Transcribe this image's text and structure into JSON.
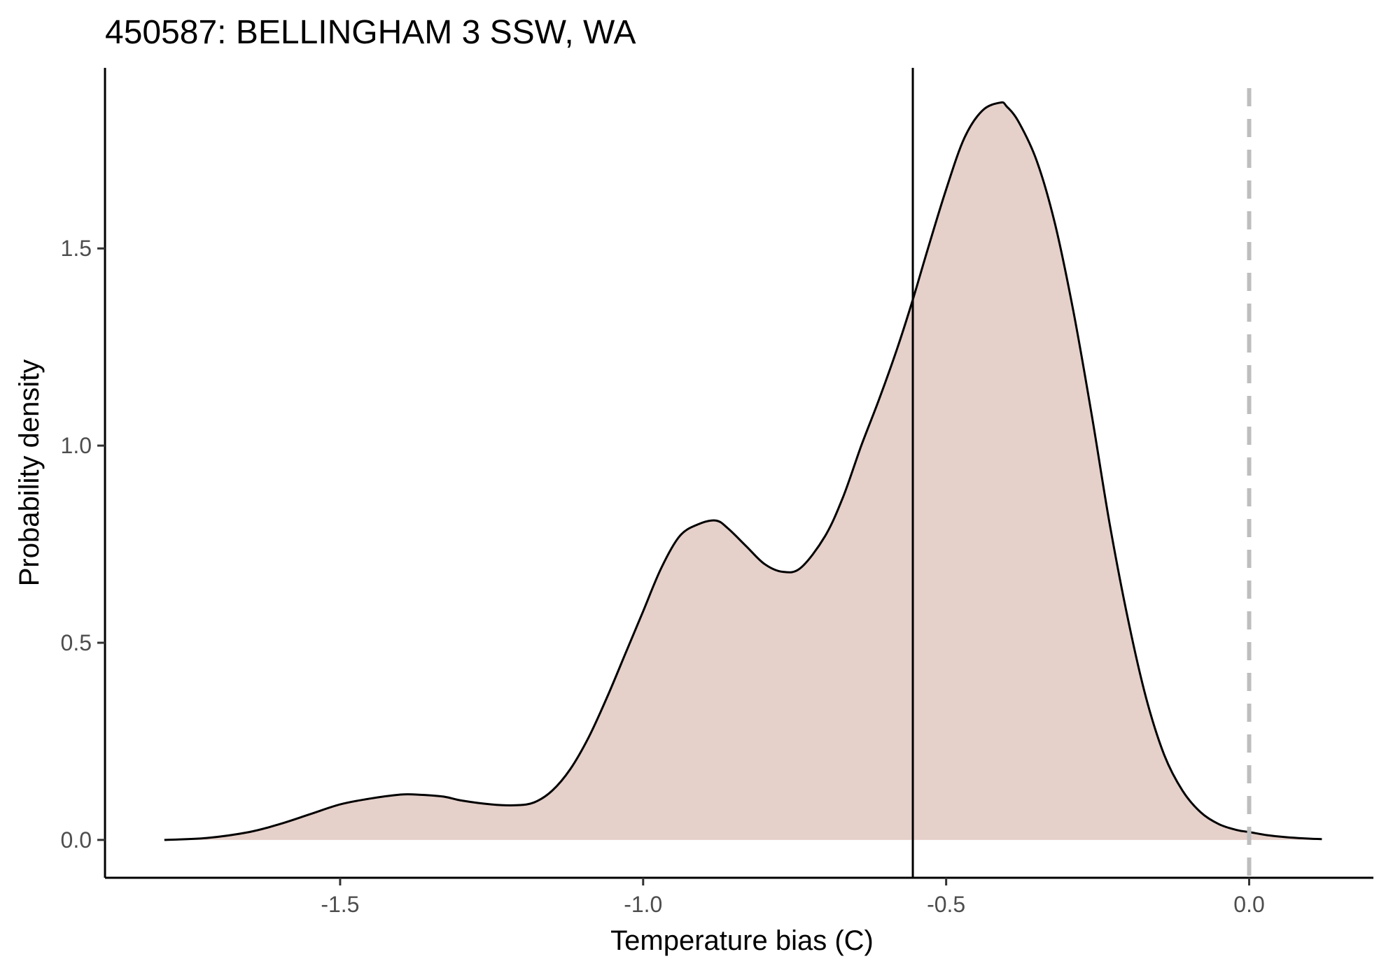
{
  "chart_data": {
    "type": "area",
    "title": "450587: BELLINGHAM 3 SSW, WA",
    "xlabel": "Temperature bias (C)",
    "ylabel": "Probability density",
    "xlim": [
      -1.888,
      0.205
    ],
    "ylim": [
      -0.096,
      1.958
    ],
    "x_ticks": [
      {
        "value": -1.5,
        "label": "-1.5"
      },
      {
        "value": -1.0,
        "label": "-1.0"
      },
      {
        "value": -0.5,
        "label": "-0.5"
      },
      {
        "value": 0.0,
        "label": "0.0"
      }
    ],
    "y_ticks": [
      {
        "value": 0.0,
        "label": "0.0"
      },
      {
        "value": 0.5,
        "label": "0.5"
      },
      {
        "value": 1.0,
        "label": "1.0"
      },
      {
        "value": 1.5,
        "label": "1.5"
      }
    ],
    "grid": false,
    "series": [
      {
        "fill": "#e6d0ca",
        "line_color": "#000000",
        "x": [
          -1.79,
          -1.72,
          -1.65,
          -1.6,
          -1.55,
          -1.5,
          -1.45,
          -1.4,
          -1.375,
          -1.33,
          -1.3,
          -1.25,
          -1.21,
          -1.18,
          -1.15,
          -1.12,
          -1.09,
          -1.06,
          -1.03,
          -1.0,
          -0.97,
          -0.94,
          -0.91,
          -0.88,
          -0.86,
          -0.83,
          -0.8,
          -0.77,
          -0.74,
          -0.7,
          -0.67,
          -0.64,
          -0.61,
          -0.58,
          -0.555,
          -0.53,
          -0.5,
          -0.47,
          -0.44,
          -0.41,
          -0.4,
          -0.38,
          -0.35,
          -0.32,
          -0.29,
          -0.26,
          -0.23,
          -0.2,
          -0.17,
          -0.14,
          -0.11,
          -0.08,
          -0.05,
          -0.02,
          0.0,
          0.03,
          0.06,
          0.09,
          0.12
        ],
        "y": [
          0.0,
          0.005,
          0.02,
          0.04,
          0.065,
          0.09,
          0.105,
          0.115,
          0.115,
          0.11,
          0.1,
          0.09,
          0.088,
          0.095,
          0.125,
          0.18,
          0.26,
          0.36,
          0.47,
          0.58,
          0.69,
          0.77,
          0.8,
          0.81,
          0.79,
          0.745,
          0.7,
          0.68,
          0.69,
          0.77,
          0.87,
          1.0,
          1.12,
          1.25,
          1.37,
          1.5,
          1.65,
          1.78,
          1.85,
          1.87,
          1.86,
          1.82,
          1.72,
          1.56,
          1.34,
          1.08,
          0.8,
          0.56,
          0.36,
          0.215,
          0.125,
          0.07,
          0.04,
          0.025,
          0.02,
          0.012,
          0.007,
          0.004,
          0.002
        ]
      }
    ],
    "reference_lines": [
      {
        "axis": "x",
        "value": -0.555,
        "style": "solid",
        "color": "#000000"
      },
      {
        "axis": "x",
        "value": 0.0,
        "style": "dashed",
        "color": "#bebebe"
      }
    ]
  }
}
